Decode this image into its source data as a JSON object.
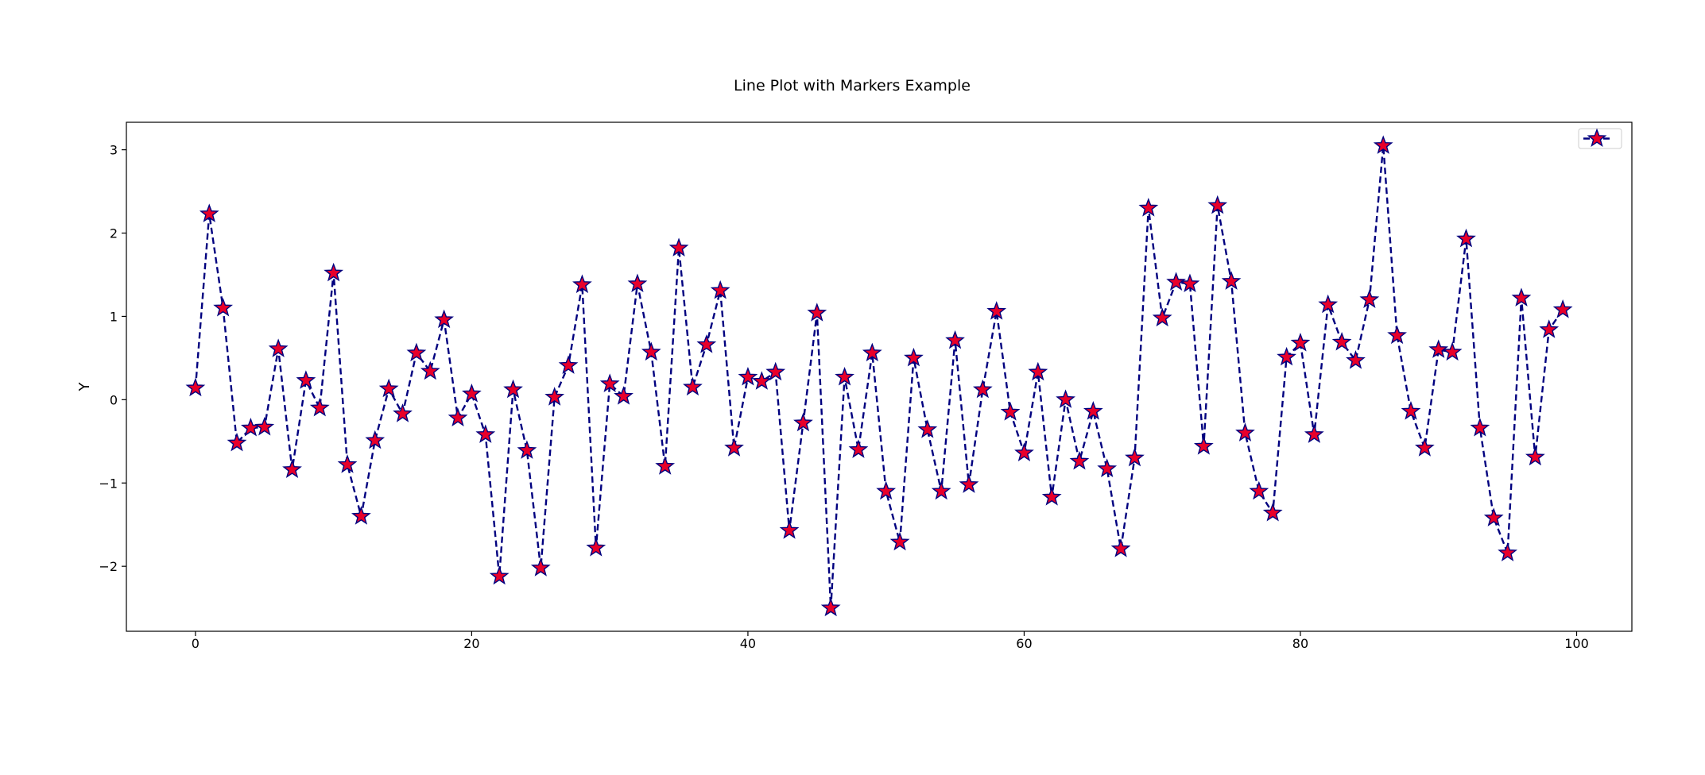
{
  "chart_data": {
    "type": "line",
    "title": "Line Plot with Markers Example",
    "xlabel": "",
    "ylabel": "Y",
    "xlim": [
      -5,
      104
    ],
    "ylim": [
      -2.78,
      3.33
    ],
    "xticks": [
      0,
      20,
      40,
      60,
      80,
      100
    ],
    "yticks": [
      -2,
      -1,
      0,
      1,
      2,
      3
    ],
    "grid": false,
    "legend": {
      "placement": "top-right",
      "entries": [
        ""
      ]
    },
    "series": [
      {
        "line_color": "#00007f",
        "line_style": "dashed",
        "marker": "star",
        "marker_face_color": "#e8002a",
        "marker_edge_color": "#00007f",
        "x": [
          0,
          1,
          2,
          3,
          4,
          5,
          6,
          7,
          8,
          9,
          10,
          11,
          12,
          13,
          14,
          15,
          16,
          17,
          18,
          19,
          20,
          21,
          22,
          23,
          24,
          25,
          26,
          27,
          28,
          29,
          30,
          31,
          32,
          33,
          34,
          35,
          36,
          37,
          38,
          39,
          40,
          41,
          42,
          43,
          44,
          45,
          46,
          47,
          48,
          49,
          50,
          51,
          52,
          53,
          54,
          55,
          56,
          57,
          58,
          59,
          60,
          61,
          62,
          63,
          64,
          65,
          66,
          67,
          68,
          69,
          70,
          71,
          72,
          73,
          74,
          75,
          76,
          77,
          78,
          79,
          80,
          81,
          82,
          83,
          84,
          85,
          86,
          87,
          88,
          89,
          90,
          91,
          92,
          93,
          94,
          95,
          96,
          97,
          98,
          99
        ],
        "y": [
          0.14,
          2.23,
          1.1,
          -0.52,
          -0.34,
          -0.33,
          0.61,
          -0.84,
          0.23,
          -0.1,
          1.52,
          -0.78,
          -1.4,
          -0.49,
          0.13,
          -0.17,
          0.56,
          0.34,
          0.96,
          -0.22,
          0.07,
          -0.42,
          -2.12,
          0.12,
          -0.61,
          -2.02,
          0.03,
          0.41,
          1.38,
          -1.78,
          0.19,
          0.04,
          1.39,
          0.57,
          -0.8,
          1.82,
          0.15,
          0.66,
          1.31,
          -0.58,
          0.27,
          0.22,
          0.33,
          -1.57,
          -0.28,
          1.04,
          -2.5,
          0.27,
          -0.6,
          0.56,
          -1.1,
          -1.71,
          0.5,
          -0.36,
          -1.1,
          0.71,
          -1.02,
          0.12,
          1.06,
          -0.15,
          -0.64,
          0.33,
          -1.17,
          0.0,
          -0.74,
          -0.14,
          -0.83,
          -1.79,
          -0.7,
          2.3,
          0.98,
          1.41,
          1.39,
          -0.56,
          2.33,
          1.42,
          -0.4,
          -1.1,
          -1.36,
          0.51,
          0.68,
          -0.42,
          1.14,
          0.69,
          0.47,
          1.2,
          3.05,
          0.77,
          -0.14,
          -0.58,
          0.6,
          0.57,
          1.93,
          -0.34,
          -1.42,
          -1.84,
          1.22,
          -0.69,
          0.84,
          1.08
        ]
      }
    ]
  }
}
